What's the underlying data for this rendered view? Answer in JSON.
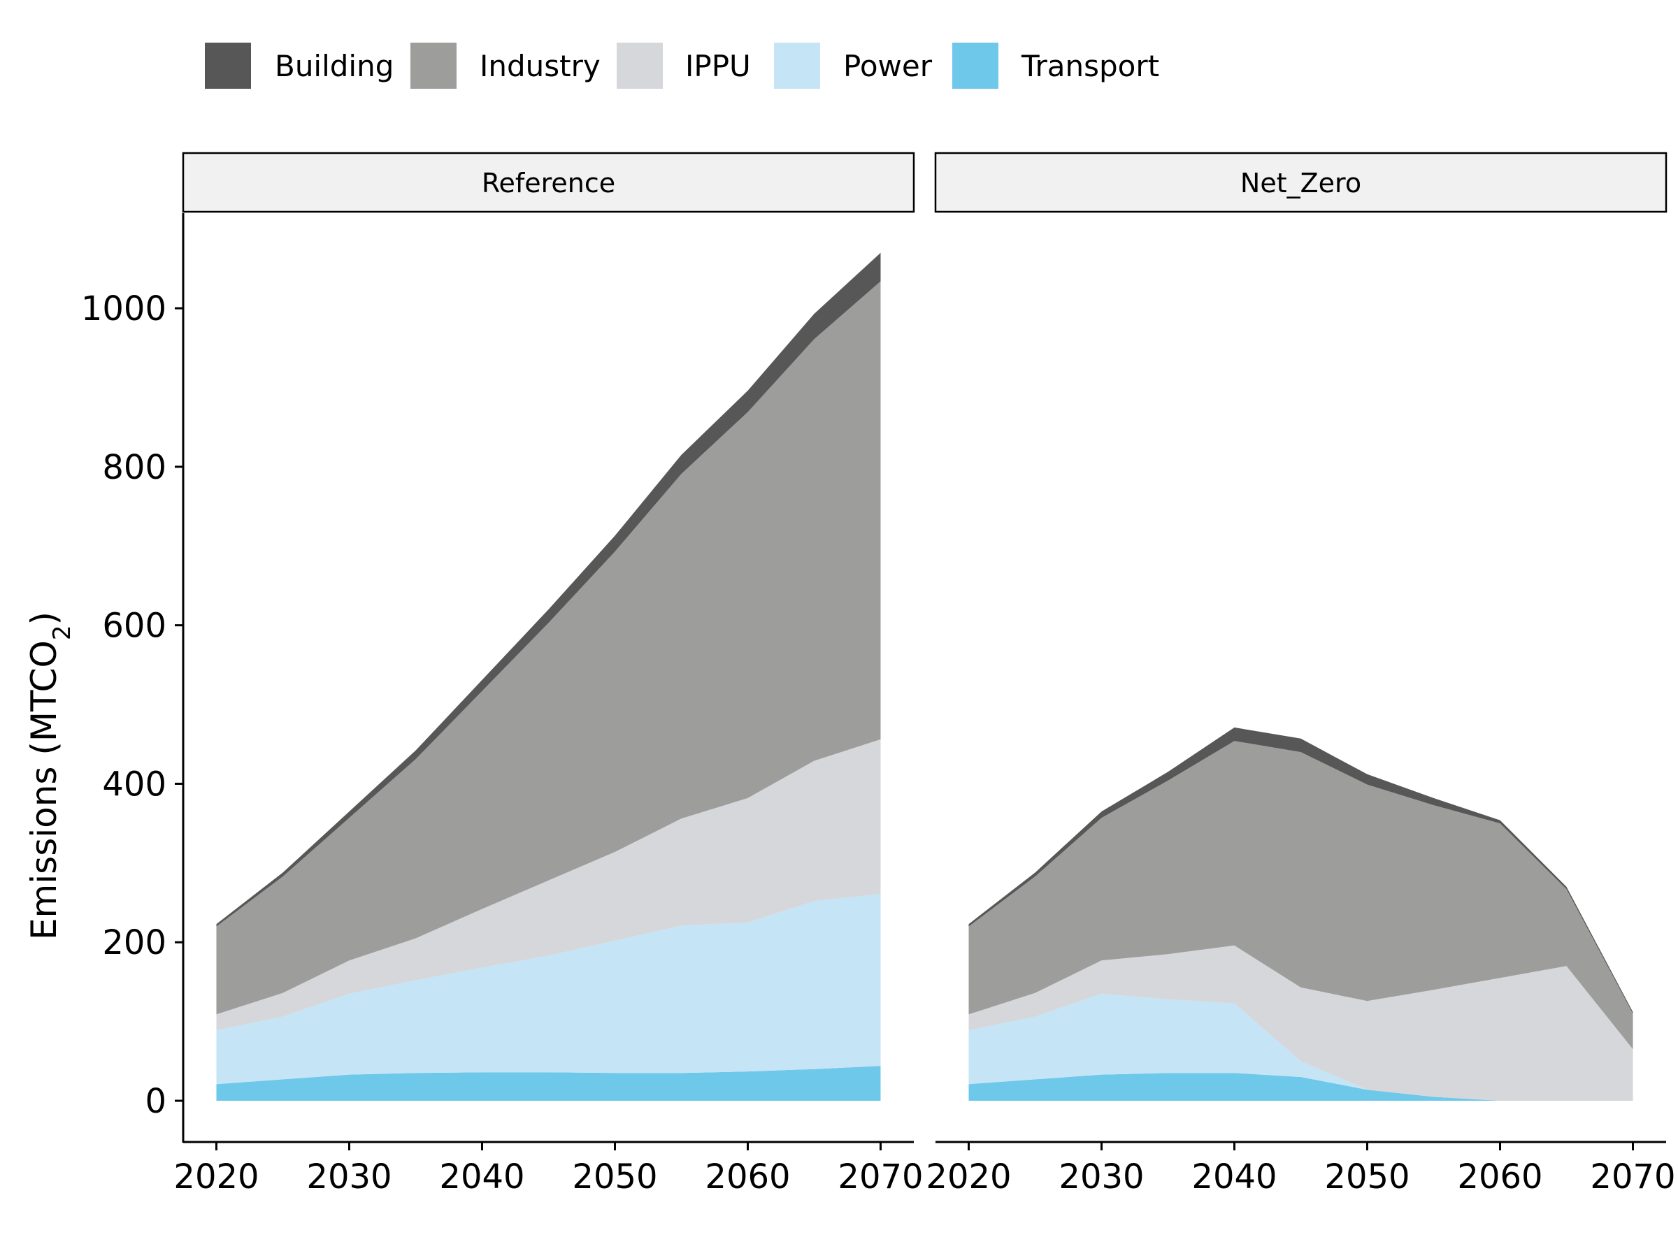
{
  "legend": {
    "items": [
      {
        "label": "Building",
        "color": "#575757"
      },
      {
        "label": "Industry",
        "color": "#9d9d9c"
      },
      {
        "label": "IPPU",
        "color": "#d6d7db"
      },
      {
        "label": "Power",
        "color": "#c5e4f5"
      },
      {
        "label": "Transport",
        "color": "#6ec8ea"
      }
    ]
  },
  "axes": {
    "ylabel_main": "Emissions (MTCO",
    "ylabel_sub": "2",
    "ylabel_close": ")",
    "y_ticks": [
      "0",
      "200",
      "400",
      "600",
      "800",
      "1000"
    ],
    "x_ticks": [
      "2020",
      "2030",
      "2040",
      "2050",
      "2060",
      "2070"
    ]
  },
  "chart_data": {
    "type": "area",
    "stacked": true,
    "xlim": [
      2017.5,
      2072.5
    ],
    "ylim": [
      -52,
      1120
    ],
    "x": [
      2020,
      2025,
      2030,
      2035,
      2040,
      2045,
      2050,
      2055,
      2060,
      2065,
      2070
    ],
    "panels": [
      {
        "name": "Reference",
        "series": [
          {
            "name": "Transport",
            "values": [
              21,
              27,
              33,
              35,
              36,
              36,
              35,
              35,
              37,
              40,
              44
            ]
          },
          {
            "name": "Power",
            "values": [
              68,
              79,
              102,
              117,
              132,
              147,
              167,
              186,
              188,
              212,
              217
            ]
          },
          {
            "name": "IPPU",
            "values": [
              20,
              30,
              42,
              53,
              74,
              95,
              112,
              135,
              157,
              177,
              195
            ]
          },
          {
            "name": "Industry",
            "values": [
              111,
              147,
              180,
              226,
              275,
              325,
              379,
              435,
              487,
              532,
              578
            ]
          },
          {
            "name": "Building",
            "values": [
              3,
              5,
              8,
              11,
              14,
              17,
              20,
              24,
              27,
              32,
              36
            ]
          }
        ]
      },
      {
        "name": "Net_Zero",
        "series": [
          {
            "name": "Transport",
            "values": [
              21,
              27,
              33,
              35,
              35,
              30,
              14,
              5,
              0,
              0,
              0
            ]
          },
          {
            "name": "Power",
            "values": [
              68,
              79,
              102,
              93,
              88,
              20,
              0,
              0,
              0,
              0,
              0
            ]
          },
          {
            "name": "IPPU",
            "values": [
              20,
              30,
              42,
              57,
              73,
              93,
              112,
              135,
              155,
              170,
              65
            ]
          },
          {
            "name": "Industry",
            "values": [
              111,
              147,
              180,
              219,
              258,
              297,
              273,
              233,
              195,
              97,
              45
            ]
          },
          {
            "name": "Building",
            "values": [
              3,
              5,
              8,
              11,
              17,
              17,
              13,
              9,
              4,
              3,
              2
            ]
          }
        ]
      }
    ]
  }
}
